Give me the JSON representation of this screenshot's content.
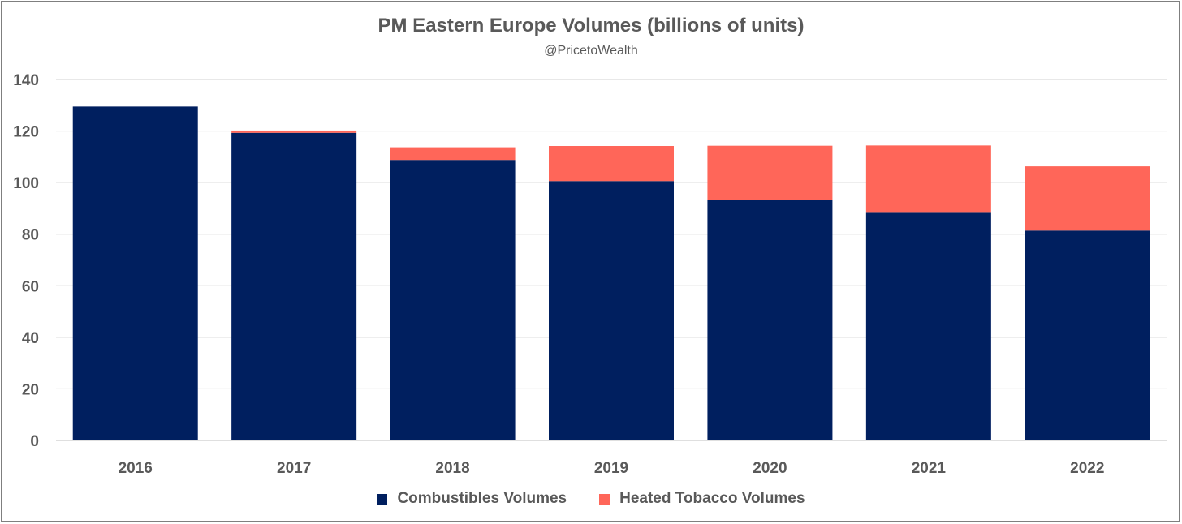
{
  "chart_data": {
    "type": "bar",
    "stacked": true,
    "title": "PM Eastern Europe Volumes (billions of units)",
    "subtitle": "@PricetoWealth",
    "xlabel": "",
    "ylabel": "",
    "ylim": [
      0,
      140
    ],
    "yticks": [
      0,
      20,
      40,
      60,
      80,
      100,
      120,
      140
    ],
    "grid": true,
    "legend_position": "bottom",
    "categories": [
      "2016",
      "2017",
      "2018",
      "2019",
      "2020",
      "2021",
      "2022"
    ],
    "series": [
      {
        "name": "Combustibles Volumes",
        "color": "#001f5f",
        "values": [
          129.5,
          119.3,
          108.8,
          100.6,
          93.3,
          88.6,
          81.4
        ]
      },
      {
        "name": "Heated Tobacco Volumes",
        "color": "#ff6659",
        "values": [
          0.0,
          0.9,
          4.9,
          13.6,
          21.0,
          25.8,
          24.9
        ]
      }
    ]
  }
}
